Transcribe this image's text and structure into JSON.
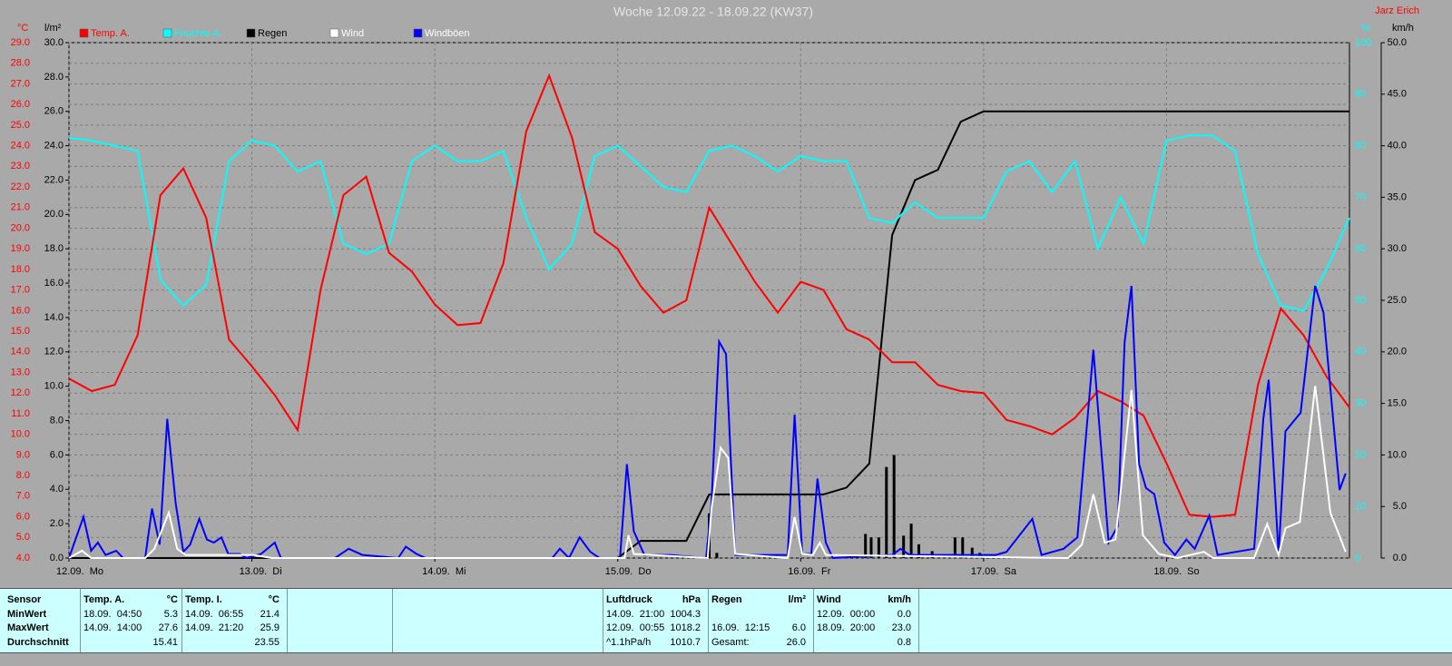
{
  "chart_data": {
    "type": "line",
    "title": "Woche 12.09.22 - 18.09.22 (KW37)",
    "author": "Jarz Erich",
    "y_unit": "°C",
    "y2_unit": "l/m²",
    "y3_unit": "%",
    "y4_unit": "km/h",
    "xlim": [
      0,
      168
    ],
    "xticks": [
      {
        "value": 0,
        "label": "12.09.  Mo"
      },
      {
        "value": 24,
        "label": "13.09.  Di"
      },
      {
        "value": 48,
        "label": "14.09.  Mi"
      },
      {
        "value": 72,
        "label": "15.09.  Do"
      },
      {
        "value": 96,
        "label": "16.09.  Fr"
      },
      {
        "value": 120,
        "label": "17.09.  Sa"
      },
      {
        "value": 144,
        "label": "18.09.  So"
      }
    ],
    "ylim": [
      4,
      29
    ],
    "yticks": [
      {
        "value": 4,
        "label": "4.0"
      },
      {
        "value": 5,
        "label": "5.0"
      },
      {
        "value": 6,
        "label": "6.0"
      },
      {
        "value": 7,
        "label": "7.0"
      },
      {
        "value": 8,
        "label": "8.0"
      },
      {
        "value": 9,
        "label": "9.0"
      },
      {
        "value": 10,
        "label": "10.0"
      },
      {
        "value": 11,
        "label": "11.0"
      },
      {
        "value": 12,
        "label": "12.0"
      },
      {
        "value": 13,
        "label": "13.0"
      },
      {
        "value": 14,
        "label": "14.0"
      },
      {
        "value": 15,
        "label": "15.0"
      },
      {
        "value": 16,
        "label": "16.0"
      },
      {
        "value": 17,
        "label": "17.0"
      },
      {
        "value": 18,
        "label": "18.0"
      },
      {
        "value": 19,
        "label": "19.0"
      },
      {
        "value": 20,
        "label": "20.0"
      },
      {
        "value": 21,
        "label": "21.0"
      },
      {
        "value": 22,
        "label": "22.0"
      },
      {
        "value": 23,
        "label": "23.0"
      },
      {
        "value": 24,
        "label": "24.0"
      },
      {
        "value": 25,
        "label": "25.0"
      },
      {
        "value": 26,
        "label": "26.0"
      },
      {
        "value": 27,
        "label": "27.0"
      },
      {
        "value": 28,
        "label": "28.0"
      },
      {
        "value": 29,
        "label": "29.0"
      }
    ],
    "y2lim": [
      0,
      30
    ],
    "y2ticks": [
      {
        "value": 0,
        "label": "0.0"
      },
      {
        "value": 2,
        "label": "2.0"
      },
      {
        "value": 4,
        "label": "4.0"
      },
      {
        "value": 6,
        "label": "6.0"
      },
      {
        "value": 8,
        "label": "8.0"
      },
      {
        "value": 10,
        "label": "10.0"
      },
      {
        "value": 12,
        "label": "12.0"
      },
      {
        "value": 14,
        "label": "14.0"
      },
      {
        "value": 16,
        "label": "16.0"
      },
      {
        "value": 18,
        "label": "18.0"
      },
      {
        "value": 20,
        "label": "20.0"
      },
      {
        "value": 22,
        "label": "22.0"
      },
      {
        "value": 24,
        "label": "24.0"
      },
      {
        "value": 26,
        "label": "26.0"
      },
      {
        "value": 28,
        "label": "28.0"
      },
      {
        "value": 30,
        "label": "30.0"
      }
    ],
    "y3lim": [
      0,
      100
    ],
    "y3ticks": [
      0,
      10,
      20,
      30,
      40,
      50,
      60,
      70,
      80,
      90,
      100
    ],
    "y4lim": [
      0,
      50
    ],
    "y4ticks": [
      {
        "value": 0,
        "label": "0.0"
      },
      {
        "value": 5,
        "label": "5.0"
      },
      {
        "value": 10,
        "label": "10.0"
      },
      {
        "value": 15,
        "label": "15.0"
      },
      {
        "value": 20,
        "label": "20.0"
      },
      {
        "value": 25,
        "label": "25.0"
      },
      {
        "value": 30,
        "label": "30.0"
      },
      {
        "value": 35,
        "label": "35.0"
      },
      {
        "value": 40,
        "label": "40.0"
      },
      {
        "value": 45,
        "label": "45.0"
      },
      {
        "value": 50,
        "label": "50.0"
      }
    ],
    "grid": true,
    "x": [
      0,
      3,
      6,
      9,
      12,
      15,
      18,
      21,
      24,
      27,
      30,
      33,
      36,
      39,
      42,
      45,
      48,
      51,
      54,
      57,
      60,
      63,
      66,
      69,
      72,
      75,
      78,
      81,
      84,
      87,
      90,
      93,
      96,
      99,
      102,
      105,
      108,
      111,
      114,
      117,
      120,
      123,
      126,
      129,
      132,
      135,
      138,
      141,
      144,
      147,
      150,
      153,
      156,
      159,
      162,
      165,
      168
    ],
    "series": [
      {
        "name": "Temp. A.",
        "color": "#ff0000",
        "axis": "y",
        "values": [
          12.7,
          12.1,
          12.4,
          14.8,
          21.6,
          22.9,
          20.5,
          14.6,
          13.3,
          11.9,
          10.2,
          17.0,
          21.6,
          22.5,
          18.8,
          17.9,
          16.3,
          15.3,
          15.4,
          18.3,
          24.7,
          27.4,
          24.4,
          19.8,
          19.0,
          17.2,
          15.9,
          16.5,
          21.0,
          19.2,
          17.4,
          15.9,
          17.4,
          17.0,
          15.1,
          14.6,
          13.5,
          13.5,
          12.4,
          12.1,
          12.0,
          10.7,
          10.4,
          10.0,
          10.8,
          12.1,
          11.6,
          10.9,
          8.6,
          6.1,
          6.0,
          6.1,
          12.4,
          16.1,
          14.8,
          12.8,
          11.3
        ]
      },
      {
        "name": "Feuchte A.",
        "color": "#00ffff",
        "axis": "y3",
        "values": [
          81.5,
          81,
          80,
          79,
          54,
          49,
          53,
          77,
          81,
          80,
          75,
          77,
          61,
          59,
          61,
          77,
          80,
          77,
          77,
          79,
          66,
          56,
          61,
          78,
          80,
          76,
          72,
          71,
          79,
          80,
          78,
          75,
          78,
          77,
          77,
          66,
          65,
          69,
          66,
          66,
          66,
          75,
          77,
          71,
          77,
          60,
          70,
          61,
          81,
          82,
          82,
          79,
          59,
          49,
          48,
          56,
          66
        ]
      },
      {
        "name": "Regen",
        "color": "#000000",
        "axis": "y2",
        "values": [
          0,
          0,
          0,
          0,
          0,
          0,
          0,
          0,
          0,
          0,
          0,
          0,
          0,
          0,
          0,
          0,
          0,
          0,
          0,
          0,
          0,
          0,
          0,
          0,
          0,
          1.0,
          1.0,
          1.0,
          3.7,
          3.7,
          3.7,
          3.7,
          3.7,
          3.7,
          4.1,
          5.5,
          18.8,
          22.0,
          22.6,
          25.4,
          26.0,
          26.0,
          26.0,
          26.0,
          26.0,
          26.0,
          26.0,
          26.0,
          26.0,
          26.0,
          26.0,
          26.0,
          26.0,
          26.0,
          26.0,
          26.0,
          26.0
        ]
      },
      {
        "name": "Wind",
        "color": "#ffffff",
        "axis": "y4",
        "x": [
          0,
          1.7,
          2.9,
          10,
          11.2,
          13.1,
          14.2,
          15.3,
          24.2,
          26.6,
          72.9,
          73.4,
          74.1,
          83.8,
          84.3,
          85.5,
          86.5,
          87.4,
          94.3,
          95.2,
          96.2,
          97.6,
          98.5,
          99.3,
          131.1,
          132.9,
          134.4,
          135.9,
          137.3,
          139.4,
          140.9,
          143,
          145.4,
          148.9,
          150.1,
          155.5,
          157.2,
          158.7,
          159.6,
          161.5,
          163.5,
          165.5,
          167.5
        ],
        "values": [
          0,
          0.7,
          0,
          0,
          0.9,
          4.4,
          0.9,
          0.3,
          0.3,
          0,
          0,
          2.2,
          0.4,
          0,
          4.8,
          10.7,
          9.7,
          0.4,
          0,
          4.0,
          0.4,
          0.3,
          1.5,
          0.3,
          0,
          1.3,
          6.2,
          1.5,
          1.8,
          16.3,
          2.2,
          0.4,
          0,
          0.6,
          0,
          0,
          3.3,
          0.3,
          2.9,
          3.5,
          16.7,
          4.4,
          0.6
        ]
      },
      {
        "name": "Windböen",
        "color": "#0000ff",
        "axis": "y4",
        "x": [
          0,
          1.9,
          2.9,
          3.8,
          4.8,
          6.2,
          7.1,
          10,
          10.9,
          11.9,
          12.9,
          14,
          15,
          15.9,
          17.1,
          18.1,
          19,
          20,
          20.9,
          22.4,
          23.3,
          25.2,
          27,
          27.8,
          34.9,
          36.7,
          38.5,
          43.2,
          44.2,
          45.6,
          46.8,
          63.4,
          64.4,
          65.6,
          67,
          68.4,
          69.6,
          72.3,
          73.2,
          74.1,
          75.5,
          78.9,
          83.6,
          84.3,
          85.3,
          86.2,
          87.4,
          94.3,
          95.2,
          96.2,
          97.4,
          98.2,
          99.3,
          100.2,
          108,
          109.1,
          110.3,
          121.6,
          123,
          126.4,
          127.6,
          130.5,
          132.3,
          134.4,
          136.4,
          137.6,
          138.5,
          139.4,
          140.4,
          141.3,
          142.4,
          143.7,
          145.1,
          146.6,
          147.7,
          149.6,
          150.7,
          155.5,
          156.7,
          157.4,
          158.7,
          159.6,
          161.6,
          163.5,
          164.6,
          166.7,
          167.5
        ],
        "values": [
          0,
          4.0,
          0.7,
          1.5,
          0.3,
          0.7,
          0,
          0,
          4.8,
          1.3,
          13.5,
          5.3,
          0.6,
          1.3,
          3.8,
          1.8,
          1.5,
          2.0,
          0.4,
          0.4,
          0,
          0.4,
          1.5,
          0,
          0,
          0.9,
          0.3,
          0,
          1.1,
          0.4,
          0,
          0,
          0.9,
          0,
          2.0,
          0.6,
          0,
          0,
          9.1,
          2.6,
          0.3,
          0.3,
          0,
          5.3,
          21.0,
          19.8,
          0.3,
          0.3,
          13.9,
          0.4,
          0.4,
          7.7,
          1.5,
          0,
          0.3,
          0.9,
          0.3,
          0.3,
          0.6,
          3.8,
          0.3,
          0.9,
          2.0,
          20.2,
          1.5,
          3.1,
          20.9,
          26.4,
          9.1,
          6.8,
          6.2,
          1.5,
          0.3,
          1.8,
          0.9,
          4.1,
          0.3,
          0.9,
          13.5,
          17.3,
          0.3,
          12.3,
          14.1,
          26.4,
          23.8,
          6.6,
          8.2
        ]
      },
      {
        "type": "bar",
        "color": "#000000",
        "axis": "y2",
        "x": [
          84,
          85,
          102.5,
          104.5,
          105.25,
          106.25,
          107.25,
          108.25,
          109.5,
          110.5,
          111.5,
          113.25,
          116.25,
          117.25,
          118.5,
          119.5
        ],
        "values": [
          2.6,
          0.3,
          0.2,
          1.4,
          1.2,
          1.2,
          5.3,
          6.0,
          1.3,
          2.0,
          0.8,
          0.4,
          1.2,
          1.2,
          0.6,
          0.3
        ]
      }
    ]
  },
  "table": {
    "row_labels": [
      "Sensor",
      "MinWert",
      "MaxWert",
      "Durchschnitt"
    ],
    "groups": [
      {
        "name": "Temp. A.",
        "unit": "°C",
        "rows": [
          {
            "time": "18.09.  04:50",
            "value": "5.3"
          },
          {
            "time": "14.09.  14:00",
            "value": "27.6"
          },
          {
            "value": "15.41"
          }
        ]
      },
      {
        "name": "Temp. I.",
        "unit": "°C",
        "rows": [
          {
            "time": "14.09.  06:55",
            "value": "21.4"
          },
          {
            "time": "14.09.  21:20",
            "value": "25.9"
          },
          {
            "value": "23.55"
          }
        ]
      },
      {
        "name": "Luftdruck",
        "unit": "hPa",
        "rows": [
          {
            "time": "14.09.  21:00",
            "value": "1004.3"
          },
          {
            "time": "12.09.  00:55",
            "value": "1018.2"
          },
          {
            "time": "^1.1hPa/h",
            "value": "1010.7"
          }
        ]
      },
      {
        "name": "Regen",
        "unit": "l/m²",
        "rows": [
          {},
          {
            "time": "16.09.  12:15",
            "value": "6.0"
          },
          {
            "time": "Gesamt:",
            "value": "26.0"
          }
        ]
      },
      {
        "name": "Wind",
        "unit": "km/h",
        "rows": [
          {
            "time": "12.09.  00:00",
            "value": "0.0"
          },
          {
            "time": "18.09.  20:00",
            "value": "23.0"
          },
          {
            "value": "0.8"
          }
        ]
      }
    ]
  }
}
